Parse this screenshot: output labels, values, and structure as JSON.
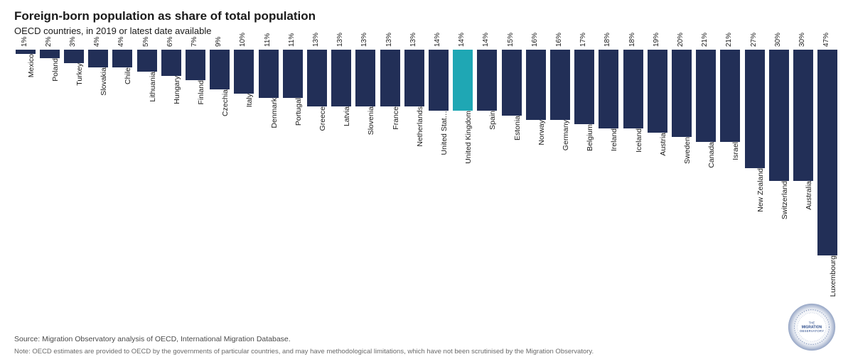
{
  "header": {
    "title": "Foreign-born population as share of total population",
    "subtitle": "OECD countries, in 2019 or latest date available"
  },
  "chart": {
    "type": "bar",
    "ymax": 47,
    "bar_color": "#222f57",
    "highlight_color": "#1fa7b4",
    "background_color": "#ffffff",
    "label_fontsize": 10,
    "category_fontsize": 10.5,
    "title_fontsize": 17,
    "subtitle_fontsize": 13,
    "bars": [
      {
        "category": "Mexico",
        "value": 1,
        "label": "1%",
        "highlight": false
      },
      {
        "category": "Poland",
        "value": 2,
        "label": "2%",
        "highlight": false
      },
      {
        "category": "Turkey",
        "value": 3,
        "label": "3%",
        "highlight": false
      },
      {
        "category": "Slovakia",
        "value": 4,
        "label": "4%",
        "highlight": false
      },
      {
        "category": "Chile",
        "value": 4,
        "label": "4%",
        "highlight": false
      },
      {
        "category": "Lithuania",
        "value": 5,
        "label": "5%",
        "highlight": false
      },
      {
        "category": "Hungary",
        "value": 6,
        "label": "6%",
        "highlight": false
      },
      {
        "category": "Finland",
        "value": 7,
        "label": "7%",
        "highlight": false
      },
      {
        "category": "Czechia",
        "value": 9,
        "label": "9%",
        "highlight": false
      },
      {
        "category": "Italy",
        "value": 10,
        "label": "10%",
        "highlight": false
      },
      {
        "category": "Denmark",
        "value": 11,
        "label": "11%",
        "highlight": false
      },
      {
        "category": "Portugal",
        "value": 11,
        "label": "11%",
        "highlight": false
      },
      {
        "category": "Greece",
        "value": 13,
        "label": "13%",
        "highlight": false
      },
      {
        "category": "Latvia",
        "value": 13,
        "label": "13%",
        "highlight": false
      },
      {
        "category": "Slovenia",
        "value": 13,
        "label": "13%",
        "highlight": false
      },
      {
        "category": "France",
        "value": 13,
        "label": "13%",
        "highlight": false
      },
      {
        "category": "Netherlands",
        "value": 13,
        "label": "13%",
        "highlight": false
      },
      {
        "category": "United Stat…",
        "value": 14,
        "label": "14%",
        "highlight": false
      },
      {
        "category": "United Kingdom",
        "value": 14,
        "label": "14%",
        "highlight": true
      },
      {
        "category": "Spain",
        "value": 14,
        "label": "14%",
        "highlight": false
      },
      {
        "category": "Estonia",
        "value": 15,
        "label": "15%",
        "highlight": false
      },
      {
        "category": "Norway",
        "value": 16,
        "label": "16%",
        "highlight": false
      },
      {
        "category": "Germany",
        "value": 16,
        "label": "16%",
        "highlight": false
      },
      {
        "category": "Belgium",
        "value": 17,
        "label": "17%",
        "highlight": false
      },
      {
        "category": "Ireland",
        "value": 18,
        "label": "18%",
        "highlight": false
      },
      {
        "category": "Iceland",
        "value": 18,
        "label": "18%",
        "highlight": false
      },
      {
        "category": "Austria",
        "value": 19,
        "label": "19%",
        "highlight": false
      },
      {
        "category": "Sweden",
        "value": 20,
        "label": "20%",
        "highlight": false
      },
      {
        "category": "Canada",
        "value": 21,
        "label": "21%",
        "highlight": false
      },
      {
        "category": "Israel",
        "value": 21,
        "label": "21%",
        "highlight": false
      },
      {
        "category": "New Zealand",
        "value": 27,
        "label": "27%",
        "highlight": false
      },
      {
        "category": "Switzerland",
        "value": 30,
        "label": "30%",
        "highlight": false
      },
      {
        "category": "Australia",
        "value": 30,
        "label": "30%",
        "highlight": false
      },
      {
        "category": "Luxembourg",
        "value": 47,
        "label": "47%",
        "highlight": false
      }
    ]
  },
  "footer": {
    "source": "Source: Migration Observatory analysis of OECD, International Migration Database.",
    "note": "Note: OECD estimates are provided to OECD by the governments of particular countries, and may have methodological limitations, which have not been scrutinised by the Migration Observatory."
  },
  "logo": {
    "text_top": "THE",
    "text_mid": "MIGRATION",
    "text_bot": "OBSERVATORY",
    "color": "#2a4a8a"
  }
}
